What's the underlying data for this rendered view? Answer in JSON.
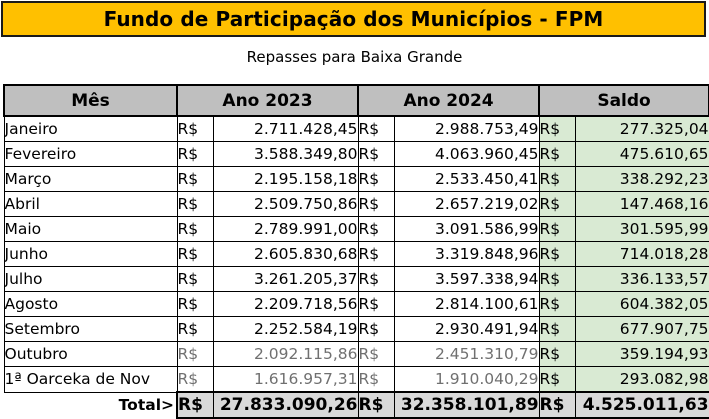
{
  "title": "Fundo de Participação dos Municípios - FPM",
  "subtitle": "Repasses para Baixa Grande",
  "colors": {
    "banner": "#ffc000",
    "header": "#bfbfbf",
    "saldo": "#d9ead3",
    "total": "#d9d9d9"
  },
  "headers": {
    "month": "Mês",
    "y2023": "Ano 2023",
    "y2024": "Ano 2024",
    "saldo": "Saldo"
  },
  "currency": "R$",
  "rows": [
    {
      "month": "Janeiro",
      "y2023": "2.711.428,45",
      "y2024": "2.988.753,49",
      "saldo": "277.325,04"
    },
    {
      "month": "Fevereiro",
      "y2023": "3.588.349,80",
      "y2024": "4.063.960,45",
      "saldo": "475.610,65"
    },
    {
      "month": "Março",
      "y2023": "2.195.158,18",
      "y2024": "2.533.450,41",
      "saldo": "338.292,23"
    },
    {
      "month": "Abril",
      "y2023": "2.509.750,86",
      "y2024": "2.657.219,02",
      "saldo": "147.468,16"
    },
    {
      "month": "Maio",
      "y2023": "2.789.991,00",
      "y2024": "3.091.586,99",
      "saldo": "301.595,99"
    },
    {
      "month": "Junho",
      "y2023": "2.605.830,68",
      "y2024": "3.319.848,96",
      "saldo": "714.018,28"
    },
    {
      "month": "Julho",
      "y2023": "3.261.205,37",
      "y2024": "3.597.338,94",
      "saldo": "336.133,57"
    },
    {
      "month": "Agosto",
      "y2023": "2.209.718,56",
      "y2024": "2.814.100,61",
      "saldo": "604.382,05"
    },
    {
      "month": "Setembro",
      "y2023": "2.252.584,19",
      "y2024": "2.930.491,94",
      "saldo": "677.907,75"
    },
    {
      "month": "Outubro",
      "y2023": "2.092.115,86",
      "y2024": "2.451.310,79",
      "saldo": "359.194,93",
      "dim": true
    },
    {
      "month": "1ª Oarceka de Nov",
      "y2023": "1.616.957,31",
      "y2024": "1.910.040,29",
      "saldo": "293.082,98",
      "dim": true
    }
  ],
  "total": {
    "label": "Total>",
    "y2023": "27.833.090,26",
    "y2024": "32.358.101,89",
    "saldo": "4.525.011,63"
  }
}
